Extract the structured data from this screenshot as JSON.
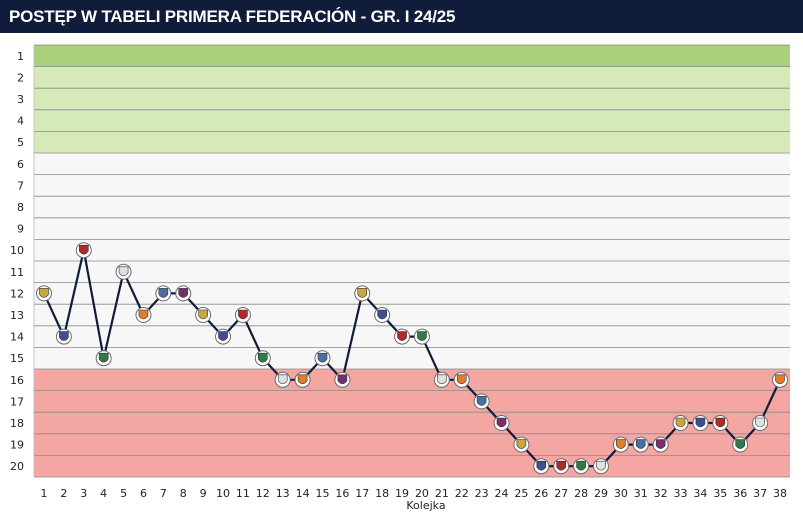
{
  "header": {
    "title": "POSTĘP W TABELI PRIMERA FEDERACIÓN - GR. I 24/25"
  },
  "colors": {
    "header_bg": "#0f1c3a",
    "promotion": "#a9d07a",
    "playoff": "#d6e9b8",
    "mid": "#f7f7f7",
    "relegation": "#f4a6a3",
    "line": "#0f1c3a",
    "grid": "#8a8a8a"
  },
  "chart_data": {
    "type": "line",
    "xlabel": "Kolejka",
    "ylabel": "",
    "x": [
      1,
      2,
      3,
      4,
      5,
      6,
      7,
      8,
      9,
      10,
      11,
      12,
      13,
      14,
      15,
      16,
      17,
      18,
      19,
      20,
      21,
      22,
      23,
      24,
      25,
      26,
      27,
      28,
      29,
      30,
      31,
      32,
      33,
      34,
      35,
      36,
      37,
      38
    ],
    "y": [
      12,
      14,
      10,
      15,
      11,
      13,
      12,
      12,
      13,
      14,
      13,
      15,
      16,
      16,
      15,
      16,
      12,
      13,
      14,
      14,
      16,
      16,
      17,
      18,
      19,
      20,
      20,
      20,
      20,
      19,
      19,
      19,
      18,
      18,
      18,
      19,
      18,
      16
    ],
    "xlim": [
      1,
      38
    ],
    "ylim": [
      1,
      20
    ],
    "y_inverted": true,
    "grid": true,
    "zones": [
      {
        "from": 1,
        "to": 1,
        "color": "#a9d07a"
      },
      {
        "from": 2,
        "to": 5,
        "color": "#d6e9b8"
      },
      {
        "from": 6,
        "to": 15,
        "color": "#f7f7f7"
      },
      {
        "from": 16,
        "to": 20,
        "color": "#f4a6a3"
      }
    ]
  }
}
